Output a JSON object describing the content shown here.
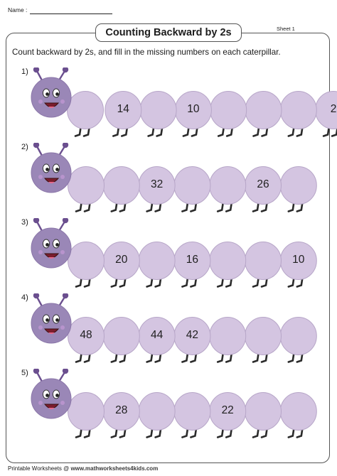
{
  "header": {
    "name_label": "Name :"
  },
  "title": "Counting Backward by 2s",
  "sheet_label": "Sheet 1",
  "instructions": "Count backward by 2s, and fill in the missing numbers on each caterpillar.",
  "colors": {
    "segment_fill": "#d4c5e1",
    "segment_stroke": "#b7a6c8",
    "head_fill": "#9a87b7",
    "antenna": "#6b4f8f",
    "legs": "#2b2b2b"
  },
  "caterpillars": [
    {
      "label": "1)",
      "segments": [
        "",
        "14",
        "",
        "10",
        "",
        "",
        "",
        "2"
      ]
    },
    {
      "label": "2)",
      "segments": [
        "",
        "",
        "32",
        "",
        "",
        "26",
        ""
      ]
    },
    {
      "label": "3)",
      "segments": [
        "",
        "20",
        "",
        "16",
        "",
        "",
        "10"
      ]
    },
    {
      "label": "4)",
      "segments": [
        "48",
        "",
        "44",
        "42",
        "",
        "",
        ""
      ]
    },
    {
      "label": "5)",
      "segments": [
        "",
        "28",
        "",
        "",
        "22",
        "",
        ""
      ]
    }
  ],
  "footer": {
    "prefix": "Printable Worksheets @ ",
    "url": "www.mathworksheets4kids.com"
  }
}
